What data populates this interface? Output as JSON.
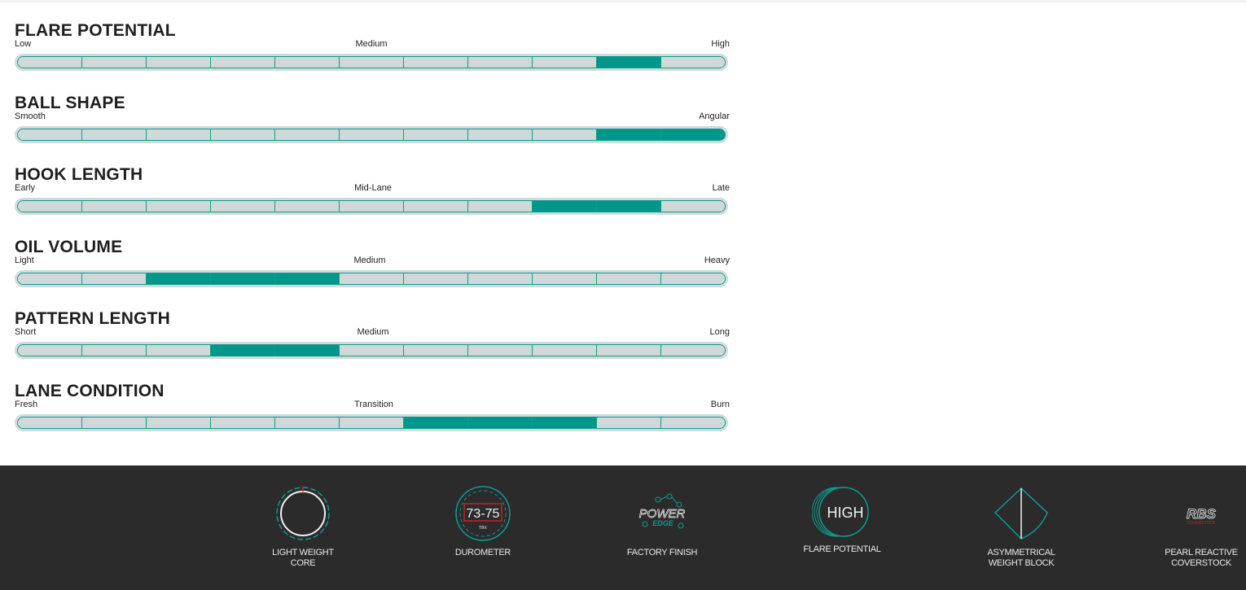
{
  "scales": [
    {
      "title": "FLARE POTENTIAL",
      "low": "Low",
      "mid": "Medium",
      "high": "High",
      "segments": 11,
      "active_from": 10,
      "active_to": 10
    },
    {
      "title": "BALL SHAPE",
      "low": "Smooth",
      "mid": "",
      "high": "Angular",
      "segments": 11,
      "active_from": 10,
      "active_to": 11
    },
    {
      "title": "HOOK LENGTH",
      "low": "Early",
      "mid": "Mid-Lane",
      "high": "Late",
      "segments": 11,
      "active_from": 9,
      "active_to": 10
    },
    {
      "title": "OIL VOLUME",
      "low": "Light",
      "mid": "Medium",
      "high": "Heavy",
      "segments": 11,
      "active_from": 3,
      "active_to": 5
    },
    {
      "title": "PATTERN LENGTH",
      "low": "Short",
      "mid": "Medium",
      "high": "Long",
      "segments": 11,
      "active_from": 4,
      "active_to": 5
    },
    {
      "title": "LANE CONDITION",
      "low": "Fresh",
      "mid": "Transition",
      "high": "Burn",
      "segments": 11,
      "active_from": 7,
      "active_to": 9
    }
  ],
  "features": [
    {
      "label": "LIGHT WEIGHT\nCORE",
      "icon": "light-weight-core-icon"
    },
    {
      "label": "DUROMETER",
      "icon": "durometer-icon",
      "value": "73-75",
      "unit": "TBX"
    },
    {
      "label": "FACTORY FINISH",
      "icon": "power-edge-icon",
      "logo_text_top": "POWER",
      "logo_text_bottom": "EDGE"
    },
    {
      "label": "FLARE POTENTIAL",
      "icon": "flare-potential-icon",
      "value": "HIGH"
    },
    {
      "label": "ASYMMETRICAL\nWEIGHT BLOCK",
      "icon": "asymmetrical-weight-block-icon"
    },
    {
      "label": "PEARL REACTIVE\nCOVERSTOCK",
      "icon": "rbs-coverstock-icon",
      "logo_text": "RBS",
      "logo_subtext": "COVERSTOCK"
    }
  ],
  "colors": {
    "accent": "#03968a",
    "segment_off": "#cfdad8",
    "bar_outline": "#d0dcda",
    "footer_bg": "#2b2b2b",
    "footer_text": "#e8e8e8",
    "durometer_red": "#c4232b"
  }
}
